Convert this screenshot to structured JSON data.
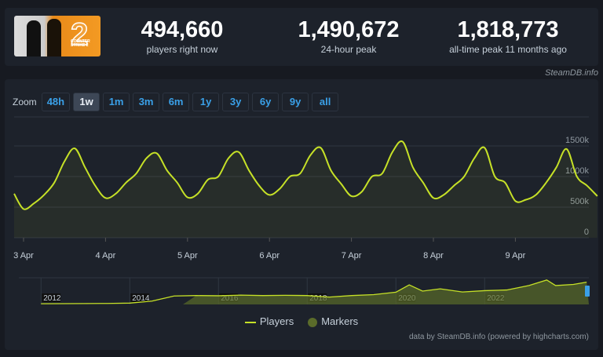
{
  "header": {
    "stats": [
      {
        "value": "494,660",
        "label": "players right now"
      },
      {
        "value": "1,490,672",
        "label": "24-hour peak"
      },
      {
        "value": "1,818,773",
        "label": "all-time peak 11 months ago"
      }
    ],
    "brand": "SteamDB.info",
    "game_logo_text": "COUNTER STRIKE 2"
  },
  "zoom": {
    "label": "Zoom",
    "buttons": [
      "48h",
      "1w",
      "1m",
      "3m",
      "6m",
      "1y",
      "3y",
      "6y",
      "9y",
      "all"
    ],
    "active": "1w"
  },
  "colors": {
    "line": "#c6e127",
    "markers": "#5a6b2a",
    "grid": "#2f3742"
  },
  "chart_data": {
    "type": "line",
    "ylim": [
      0,
      1500000
    ],
    "yticks": [
      {
        "v": 0,
        "label": "0"
      },
      {
        "v": 500000,
        "label": "500k"
      },
      {
        "v": 1000000,
        "label": "1000k"
      },
      {
        "v": 1500000,
        "label": "1500k"
      }
    ],
    "xticks": [
      "3 Apr",
      "4 Apr",
      "5 Apr",
      "6 Apr",
      "7 Apr",
      "8 Apr",
      "9 Apr"
    ],
    "series": [
      {
        "name": "Players",
        "x_start": "2 Apr 21:00",
        "step_hours": 3,
        "values": [
          720000,
          470000,
          560000,
          700000,
          900000,
          1250000,
          1460000,
          1150000,
          850000,
          650000,
          720000,
          900000,
          1050000,
          1300000,
          1380000,
          1100000,
          900000,
          660000,
          720000,
          950000,
          1000000,
          1300000,
          1400000,
          1100000,
          850000,
          700000,
          800000,
          1000000,
          1050000,
          1350000,
          1470000,
          1100000,
          880000,
          680000,
          750000,
          1000000,
          1050000,
          1400000,
          1570000,
          1150000,
          900000,
          650000,
          700000,
          850000,
          1000000,
          1300000,
          1470000,
          1000000,
          900000,
          600000,
          620000,
          700000,
          900000,
          1150000,
          1450000,
          1000000,
          850000,
          680000
        ]
      }
    ],
    "navigator": {
      "xticks": [
        "2012",
        "2014",
        "2016",
        "2018",
        "2020",
        "2022"
      ],
      "years": [
        2012,
        2012.5,
        2013,
        2013.5,
        2014,
        2014.5,
        2015,
        2015.5,
        2016,
        2016.5,
        2017,
        2017.5,
        2018,
        2018.5,
        2019,
        2019.5,
        2020,
        2020.3,
        2020.6,
        2021,
        2021.5,
        2022,
        2022.5,
        2023,
        2023.4,
        2023.6,
        2024,
        2024.3
      ],
      "values": [
        30000,
        35000,
        40000,
        45000,
        60000,
        150000,
        380000,
        400000,
        390000,
        420000,
        400000,
        410000,
        400000,
        330000,
        400000,
        440000,
        550000,
        880000,
        600000,
        700000,
        560000,
        620000,
        650000,
        850000,
        1100000,
        850000,
        900000,
        1000000
      ]
    },
    "legend": [
      "Players",
      "Markers"
    ],
    "credit": "data by SteamDB.info (powered by highcharts.com)"
  }
}
